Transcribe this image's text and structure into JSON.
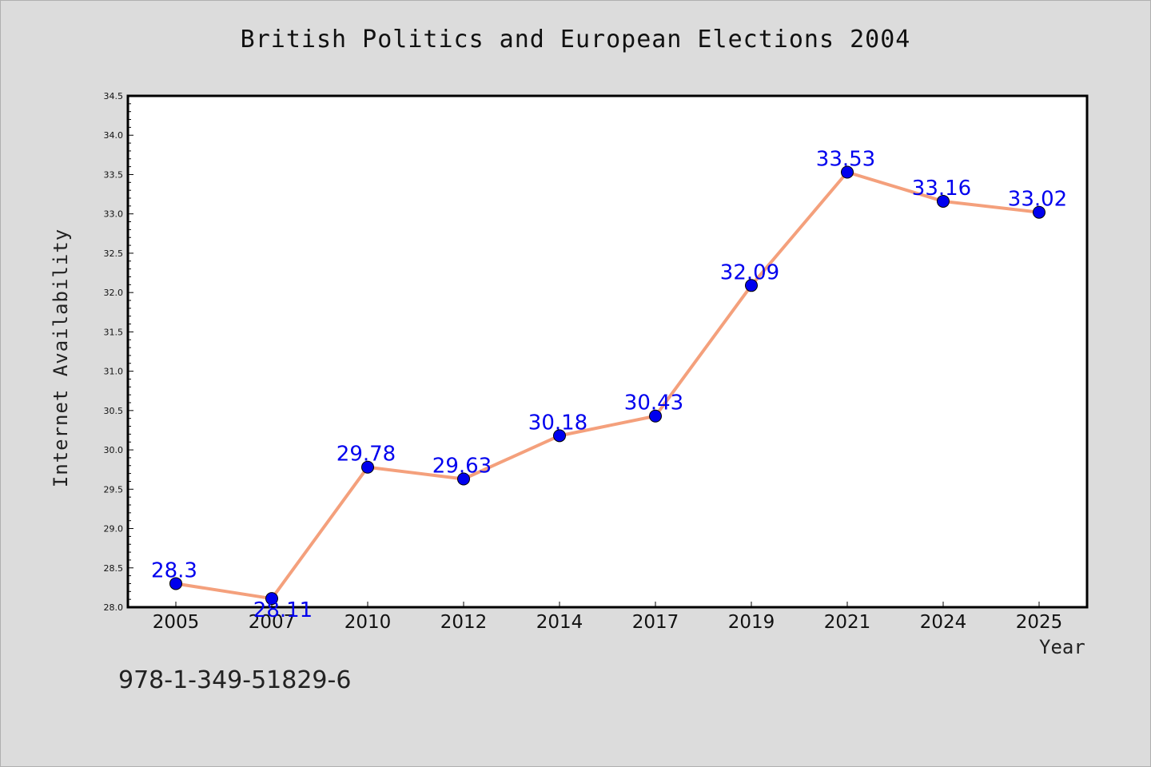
{
  "footer": {
    "isbn": "978-1-349-51829-6"
  },
  "colors": {
    "line": "#f4a07c",
    "marker": "#0000ee",
    "label": "#0000ee",
    "plot_bg": "#ffffff"
  },
  "chart_data": {
    "type": "line",
    "title": "British Politics and European Elections 2004",
    "xlabel": "Year",
    "ylabel": "Internet Availability",
    "categories": [
      "2005",
      "2007",
      "2010",
      "2012",
      "2014",
      "2017",
      "2019",
      "2021",
      "2024",
      "2025"
    ],
    "series": [
      {
        "values": [
          28.3,
          28.11,
          29.78,
          29.63,
          30.18,
          30.43,
          32.09,
          33.53,
          33.16,
          33.02
        ]
      }
    ],
    "data_labels": [
      "28.3",
      "28.11",
      "29.78",
      "29.63",
      "30.18",
      "30.43",
      "32.09",
      "33.53",
      "33.16",
      "33.02"
    ],
    "ylim": [
      28.0,
      34.5
    ],
    "yticks": [
      "28.0",
      "28.5",
      "29.0",
      "29.5",
      "30.0",
      "30.5",
      "31.0",
      "31.5",
      "32.0",
      "32.5",
      "33.0",
      "33.5",
      "34.0",
      "34.5"
    ],
    "grid": false,
    "legend": "none"
  }
}
